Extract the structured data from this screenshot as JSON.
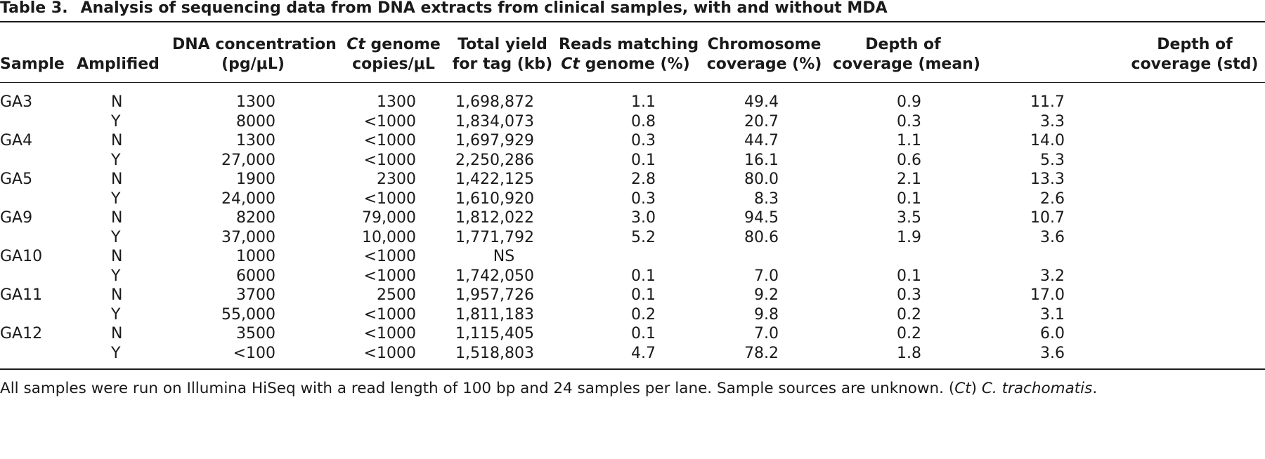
{
  "caption": {
    "label": "Table 3.",
    "title": "Analysis of sequencing data from DNA extracts from clinical samples, with and without MDA"
  },
  "headers": {
    "sample": "Sample",
    "amplified": "Amplified",
    "dna_conc": [
      "DNA concentration",
      "(pg/μL)"
    ],
    "ct_copies": [
      "Ct",
      " genome",
      "copies/μL"
    ],
    "total_yield": [
      "Total yield",
      "for tag (kb)"
    ],
    "reads": [
      "Reads matching",
      "Ct",
      " genome (%)"
    ],
    "chrom_cov": [
      "Chromosome",
      "coverage (%)"
    ],
    "depth_mean": [
      "Depth of",
      "coverage (mean)"
    ],
    "depth_std": [
      "Depth of",
      "coverage (std)"
    ]
  },
  "rows": [
    {
      "sample": "GA3",
      "amplified": "N",
      "dna": "1300",
      "ct": "1300",
      "yield": "1,698,872",
      "reads": "1.1",
      "chrom": "49.4",
      "mean": "0.9",
      "std": "11.7"
    },
    {
      "sample": "",
      "amplified": "Y",
      "dna": "8000",
      "ct": "<1000",
      "yield": "1,834,073",
      "reads": "0.8",
      "chrom": "20.7",
      "mean": "0.3",
      "std": "3.3"
    },
    {
      "sample": "GA4",
      "amplified": "N",
      "dna": "1300",
      "ct": "<1000",
      "yield": "1,697,929",
      "reads": "0.3",
      "chrom": "44.7",
      "mean": "1.1",
      "std": "14.0"
    },
    {
      "sample": "",
      "amplified": "Y",
      "dna": "27,000",
      "ct": "<1000",
      "yield": "2,250,286",
      "reads": "0.1",
      "chrom": "16.1",
      "mean": "0.6",
      "std": "5.3"
    },
    {
      "sample": "GA5",
      "amplified": "N",
      "dna": "1900",
      "ct": "2300",
      "yield": "1,422,125",
      "reads": "2.8",
      "chrom": "80.0",
      "mean": "2.1",
      "std": "13.3"
    },
    {
      "sample": "",
      "amplified": "Y",
      "dna": "24,000",
      "ct": "<1000",
      "yield": "1,610,920",
      "reads": "0.3",
      "chrom": "8.3",
      "mean": "0.1",
      "std": "2.6"
    },
    {
      "sample": "GA9",
      "amplified": "N",
      "dna": "8200",
      "ct": "79,000",
      "yield": "1,812,022",
      "reads": "3.0",
      "chrom": "94.5",
      "mean": "3.5",
      "std": "10.7"
    },
    {
      "sample": "",
      "amplified": "Y",
      "dna": "37,000",
      "ct": "10,000",
      "yield": "1,771,792",
      "reads": "5.2",
      "chrom": "80.6",
      "mean": "1.9",
      "std": "3.6"
    },
    {
      "sample": "GA10",
      "amplified": "N",
      "dna": "1000",
      "ct": "<1000",
      "yield": "NS",
      "reads": "",
      "chrom": "",
      "mean": "",
      "std": ""
    },
    {
      "sample": "",
      "amplified": "Y",
      "dna": "6000",
      "ct": "<1000",
      "yield": "1,742,050",
      "reads": "0.1",
      "chrom": "7.0",
      "mean": "0.1",
      "std": "3.2"
    },
    {
      "sample": "GA11",
      "amplified": "N",
      "dna": "3700",
      "ct": "2500",
      "yield": "1,957,726",
      "reads": "0.1",
      "chrom": "9.2",
      "mean": "0.3",
      "std": "17.0"
    },
    {
      "sample": "",
      "amplified": "Y",
      "dna": "55,000",
      "ct": "<1000",
      "yield": "1,811,183",
      "reads": "0.2",
      "chrom": "9.8",
      "mean": "0.2",
      "std": "3.1"
    },
    {
      "sample": "GA12",
      "amplified": "N",
      "dna": "3500",
      "ct": "<1000",
      "yield": "1,115,405",
      "reads": "0.1",
      "chrom": "7.0",
      "mean": "0.2",
      "std": "6.0"
    },
    {
      "sample": "",
      "amplified": "Y",
      "dna": "<100",
      "ct": "<1000",
      "yield": "1,518,803",
      "reads": "4.7",
      "chrom": "78.2",
      "mean": "1.8",
      "std": "3.6"
    }
  ],
  "footnote": {
    "text_a": "All samples were run on Illumina HiSeq with a read length of 100 bp and 24 samples per lane. Sample sources are unknown. (",
    "ct_abbrev": "Ct",
    "text_b": ") ",
    "species": "C. trachomatis",
    "text_c": "."
  }
}
